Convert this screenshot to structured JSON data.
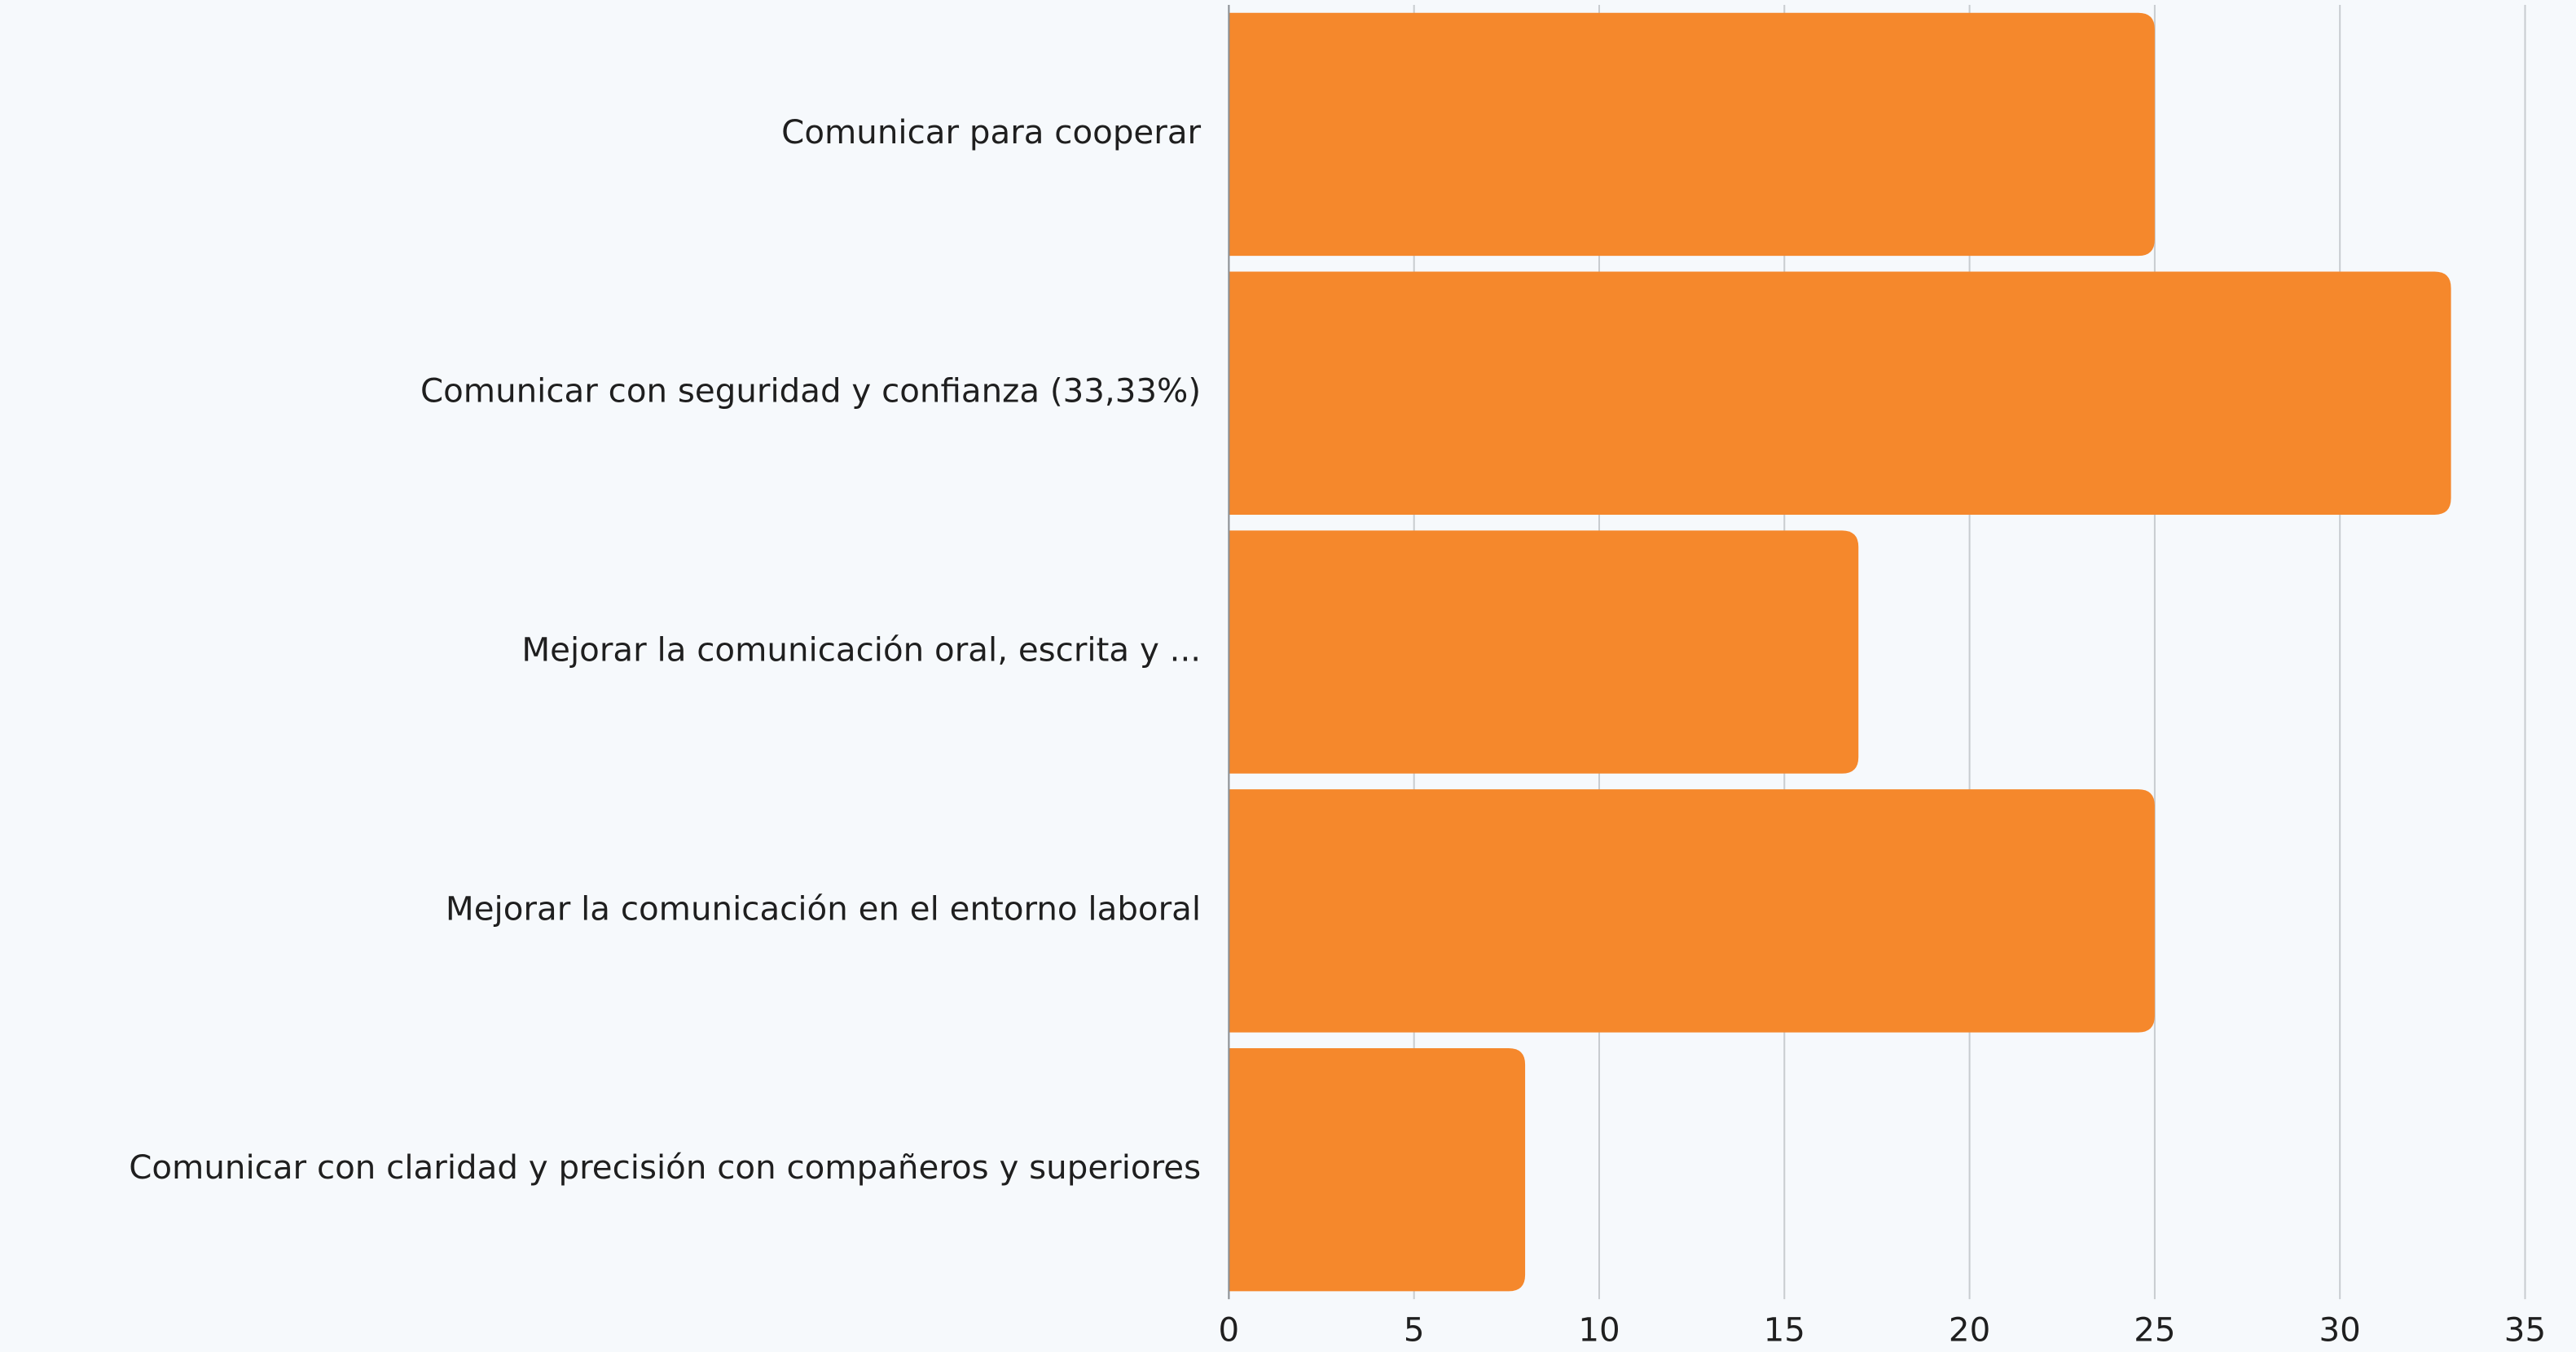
{
  "chart_data": {
    "type": "barh",
    "categories": [
      "Comunicar para cooperar",
      "Comunicar con seguridad y confianza (33,33%)",
      "Mejorar la comunicación oral, escrita y ...",
      "Mejorar la comunicación en el entorno laboral",
      "Comunicar con claridad y precisión con compañeros y superiores"
    ],
    "values": [
      25,
      33,
      17,
      25,
      8
    ],
    "color": "#f5882c",
    "xlim": [
      0,
      35
    ],
    "xticks": [
      0,
      5,
      10,
      15,
      20,
      25,
      30,
      35
    ],
    "grid": true
  }
}
